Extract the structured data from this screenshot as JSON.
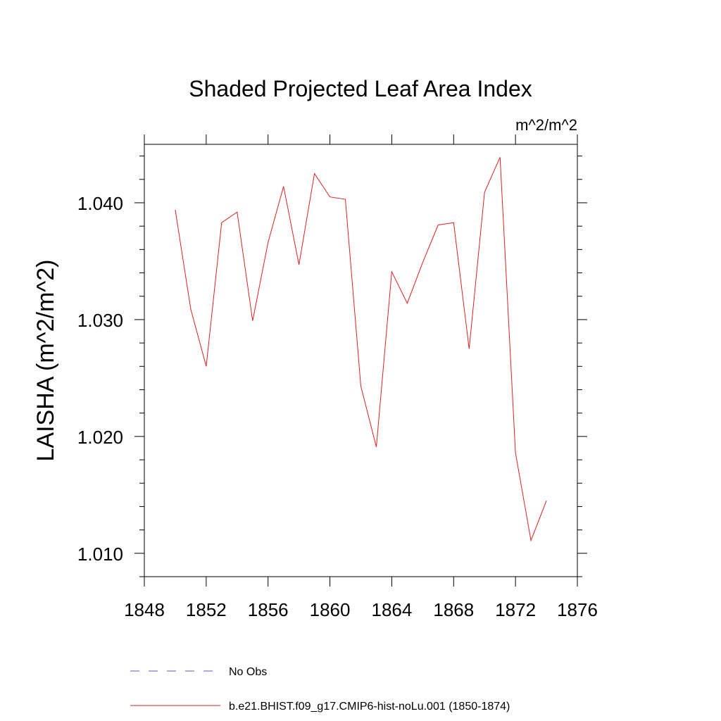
{
  "colors": {
    "axis": "#000000",
    "no_obs_line": "#5a5acb",
    "model_line": "#e02020",
    "background": "#ffffff"
  },
  "chart_data": {
    "type": "line",
    "title": "Shaded Projected Leaf Area Index",
    "units_label": "m^2/m^2",
    "ylabel": "LAISHA  (m^2/m^2)",
    "xlabel": "",
    "xlim": [
      1848,
      1876
    ],
    "ylim": [
      1.008,
      1.045
    ],
    "x_ticks": [
      1848,
      1852,
      1856,
      1860,
      1864,
      1868,
      1872,
      1876
    ],
    "x_tick_labels": [
      "1848",
      "1852",
      "1856",
      "1860",
      "1864",
      "1868",
      "1872",
      "1876"
    ],
    "y_ticks": [
      1.01,
      1.02,
      1.03,
      1.04
    ],
    "y_tick_labels": [
      "1.010",
      "1.020",
      "1.030",
      "1.040"
    ],
    "grid": false,
    "legend_position": "bottom",
    "series": [
      {
        "name": "b.e21.BHIST.f09_g17.CMIP6-hist-noLu.001 (1850-1874)",
        "style": "solid",
        "x": [
          1850,
          1851,
          1852,
          1853,
          1854,
          1855,
          1856,
          1857,
          1858,
          1859,
          1860,
          1861,
          1862,
          1863,
          1864,
          1865,
          1866,
          1867,
          1868,
          1869,
          1870,
          1871,
          1872,
          1873,
          1874
        ],
        "y": [
          1.0394,
          1.0309,
          1.026,
          1.0383,
          1.0392,
          1.0299,
          1.0366,
          1.0414,
          1.0347,
          1.0425,
          1.0405,
          1.0403,
          1.0243,
          1.0191,
          1.0341,
          1.0314,
          1.0349,
          1.0381,
          1.0383,
          1.0275,
          1.0409,
          1.0439,
          1.0186,
          1.0111,
          1.0145
        ]
      }
    ],
    "legend": [
      {
        "label": "No Obs",
        "style": "dashed"
      },
      {
        "label": "b.e21.BHIST.f09_g17.CMIP6-hist-noLu.001 (1850-1874)",
        "style": "solid"
      }
    ]
  }
}
